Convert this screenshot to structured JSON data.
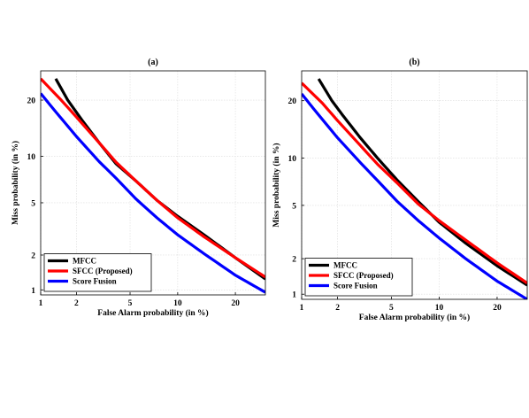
{
  "chart_data": [
    {
      "type": "line",
      "title": "(a)",
      "xlabel": "False Alarm probability (in %)",
      "ylabel": "Miss probability (in %)",
      "xscale": "probit",
      "yscale": "probit",
      "xlim": [
        1,
        27
      ],
      "ylim": [
        0.9,
        27
      ],
      "xticks": [
        1,
        2,
        5,
        10,
        20
      ],
      "yticks": [
        1,
        2,
        5,
        10,
        20
      ],
      "grid": true,
      "legend_position": "bottom-left",
      "series": [
        {
          "name": "MFCC",
          "color": "#000000",
          "x": [
            1.35,
            1.7,
            2.2,
            3.0,
            4.0,
            5.5,
            7.5,
            10.0,
            14.0,
            20.0,
            27.0
          ],
          "y": [
            25.0,
            20.0,
            16.0,
            12.0,
            9.0,
            7.0,
            5.2,
            4.0,
            2.9,
            1.9,
            1.25
          ]
        },
        {
          "name": "SFCC (Proposed)",
          "color": "#ff0000",
          "x": [
            1.0,
            1.5,
            2.0,
            3.0,
            4.0,
            5.5,
            7.5,
            10.0,
            14.0,
            20.0,
            27.0
          ],
          "y": [
            25.0,
            20.0,
            16.5,
            12.0,
            9.2,
            7.0,
            5.2,
            3.9,
            2.8,
            1.9,
            1.3
          ]
        },
        {
          "name": "Score Fusion",
          "color": "#0000ff",
          "x": [
            1.0,
            1.3,
            2.0,
            3.0,
            4.0,
            5.5,
            7.5,
            10.0,
            14.0,
            20.0,
            27.0
          ],
          "y": [
            21.5,
            18.0,
            13.0,
            9.3,
            7.3,
            5.3,
            3.9,
            2.9,
            2.05,
            1.35,
            0.95
          ]
        }
      ]
    },
    {
      "type": "line",
      "title": "(b)",
      "xlabel": "False Alarm probability (in %)",
      "ylabel": "Miss probability (in %)",
      "xscale": "probit",
      "yscale": "probit",
      "xlim": [
        1,
        27
      ],
      "ylim": [
        0.9,
        27
      ],
      "xticks": [
        1,
        2,
        5,
        10,
        20
      ],
      "yticks": [
        1,
        2,
        5,
        10,
        20
      ],
      "grid": true,
      "legend_position": "bottom-left",
      "series": [
        {
          "name": "MFCC",
          "color": "#000000",
          "x": [
            1.4,
            1.8,
            2.2,
            3.0,
            4.0,
            5.5,
            7.5,
            10.0,
            14.0,
            20.0,
            27.0
          ],
          "y": [
            25.0,
            20.0,
            17.0,
            13.0,
            10.0,
            7.3,
            5.3,
            3.8,
            2.65,
            1.75,
            1.2
          ]
        },
        {
          "name": "SFCC (Proposed)",
          "color": "#ff0000",
          "x": [
            1.0,
            1.5,
            2.0,
            3.0,
            4.0,
            5.5,
            7.5,
            10.0,
            14.0,
            20.0,
            27.0
          ],
          "y": [
            24.0,
            19.5,
            16.0,
            11.8,
            9.2,
            7.0,
            5.1,
            3.9,
            2.8,
            1.85,
            1.25
          ]
        },
        {
          "name": "Score Fusion",
          "color": "#0000ff",
          "x": [
            1.0,
            1.3,
            2.0,
            3.0,
            4.0,
            5.5,
            7.5,
            10.0,
            14.0,
            20.0,
            27.0
          ],
          "y": [
            21.5,
            18.0,
            13.0,
            9.4,
            7.3,
            5.3,
            3.9,
            2.9,
            2.0,
            1.3,
            0.9
          ]
        }
      ]
    }
  ]
}
